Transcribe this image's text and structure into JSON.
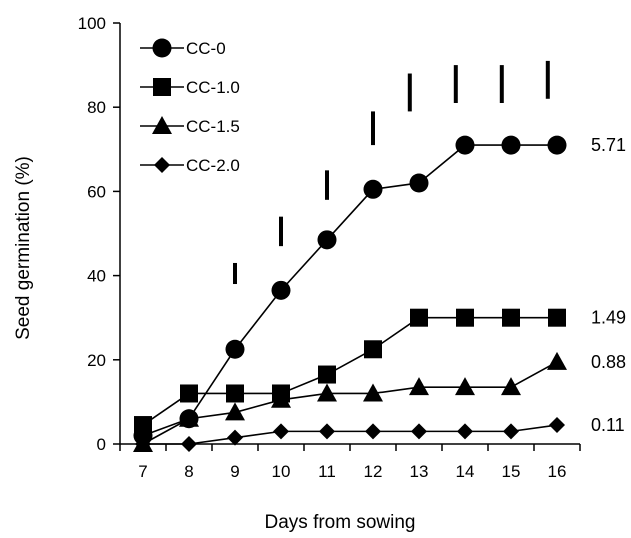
{
  "chart_data": {
    "type": "line",
    "xlabel": "Days from sowing",
    "ylabel": "Seed germination (%)",
    "xlim": [
      7,
      16
    ],
    "ylim": [
      0,
      100
    ],
    "x_ticks": [
      "7",
      "8",
      "9",
      "10",
      "11",
      "12",
      "13",
      "14",
      "15",
      "16"
    ],
    "y_ticks": [
      "0",
      "20",
      "40",
      "60",
      "80",
      "100"
    ],
    "grid": false,
    "legend_position": "top-left",
    "x": [
      7,
      8,
      9,
      10,
      11,
      12,
      13,
      14,
      15,
      16
    ],
    "series": [
      {
        "name": "CC-0",
        "marker": "circle",
        "values": [
          2,
          6,
          22.5,
          36.5,
          48.5,
          60.5,
          62,
          71,
          71,
          71
        ],
        "end_label": "5.71"
      },
      {
        "name": "CC-1.0",
        "marker": "square",
        "values": [
          4.5,
          12,
          12,
          12,
          16.5,
          22.5,
          30,
          30,
          30,
          30
        ],
        "end_label": "1.49"
      },
      {
        "name": "CC-1.5",
        "marker": "triangle",
        "values": [
          0,
          6,
          7.5,
          10.5,
          12,
          12,
          13.5,
          13.5,
          13.5,
          19.5
        ],
        "end_label": "0.88"
      },
      {
        "name": "CC-2.0",
        "marker": "diamond",
        "values": [
          0,
          0,
          1.5,
          3,
          3,
          3,
          3,
          3,
          3,
          4.5
        ],
        "end_label": "0.11"
      }
    ],
    "error_bars": [
      {
        "x": 9,
        "low": 38,
        "high": 43
      },
      {
        "x": 10,
        "low": 47,
        "high": 54
      },
      {
        "x": 11,
        "low": 58,
        "high": 65
      },
      {
        "x": 12,
        "low": 71,
        "high": 79
      },
      {
        "x": 12.8,
        "low": 79,
        "high": 88
      },
      {
        "x": 13.8,
        "low": 81,
        "high": 90
      },
      {
        "x": 14.8,
        "low": 81,
        "high": 90
      },
      {
        "x": 15.8,
        "low": 82,
        "high": 91
      }
    ]
  }
}
